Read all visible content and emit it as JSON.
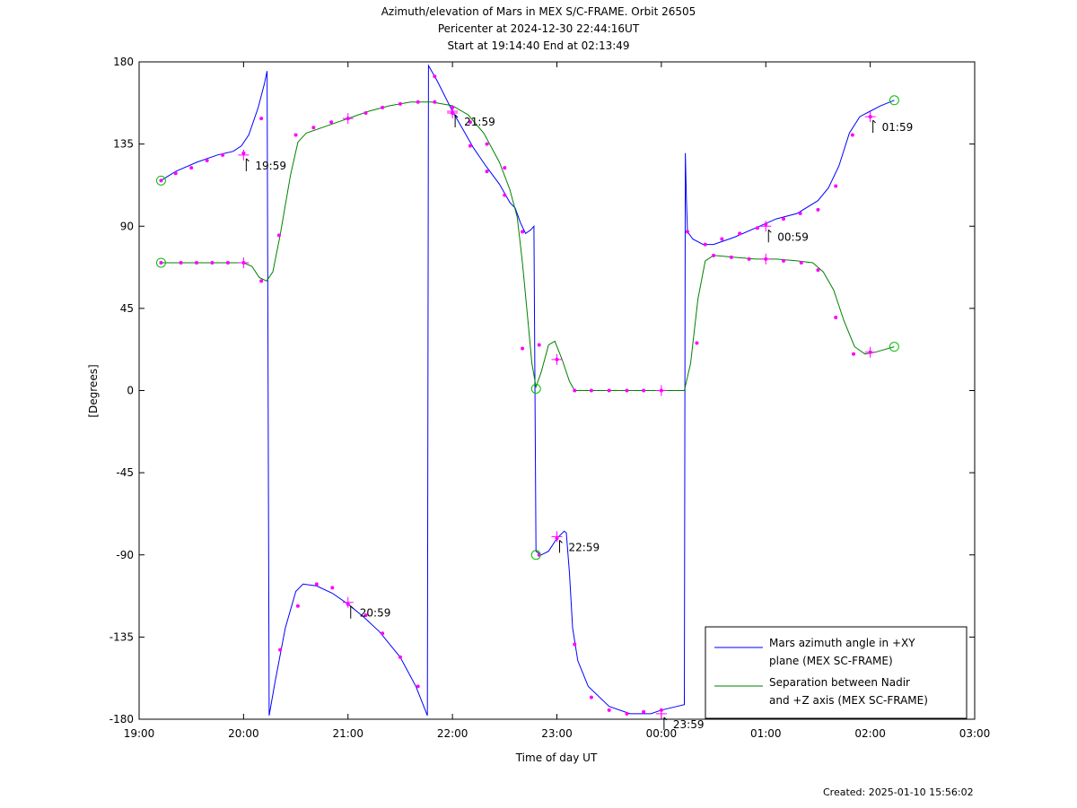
{
  "title": {
    "line1": "Azimuth/elevation of Mars in MEX S/C-FRAME.  Orbit 26505",
    "line2": "Pericenter at 2024-12-30 22:44:16UT",
    "line3": "Start at 19:14:40 End at 02:13:49"
  },
  "footer": {
    "created": "Created: 2025-01-10 15:56:02"
  },
  "colors": {
    "azimuth": "#0000ff",
    "separation": "#008000",
    "markers": "#ff00ff",
    "start_end": "#00c000"
  },
  "chart_data": {
    "type": "line",
    "xlabel": "Time of day UT",
    "ylabel": "[Degrees]",
    "x_unit": "hours since 19:00 UT on 2024-12-30",
    "xlim": [
      0,
      8
    ],
    "ylim": [
      -180,
      180
    ],
    "x_ticks": [
      {
        "v": 0,
        "label": "19:00"
      },
      {
        "v": 1,
        "label": "20:00"
      },
      {
        "v": 2,
        "label": "21:00"
      },
      {
        "v": 3,
        "label": "22:00"
      },
      {
        "v": 4,
        "label": "23:00"
      },
      {
        "v": 5,
        "label": "00:00"
      },
      {
        "v": 6,
        "label": "01:00"
      },
      {
        "v": 7,
        "label": "02:00"
      },
      {
        "v": 8,
        "label": "03:00"
      }
    ],
    "y_ticks": [
      {
        "v": 180,
        "label": "180"
      },
      {
        "v": 135,
        "label": "135"
      },
      {
        "v": 90,
        "label": "90"
      },
      {
        "v": 45,
        "label": "45"
      },
      {
        "v": 0,
        "label": "0"
      },
      {
        "v": -45,
        "label": "-45"
      },
      {
        "v": -90,
        "label": "-90"
      },
      {
        "v": -135,
        "label": "-135"
      },
      {
        "v": -180,
        "label": "-180"
      }
    ],
    "grid": false,
    "legend_position": "bottom-right",
    "legend": [
      {
        "series": "azimuth",
        "line1": "Mars azimuth angle in +XY",
        "line2": "plane (MEX SC-FRAME)"
      },
      {
        "series": "separation",
        "line1": "Separation between Nadir",
        "line2": "and +Z axis (MEX SC-FRAME)"
      }
    ],
    "series": [
      {
        "id": "azimuth",
        "name": "Mars azimuth angle in +XY plane (MEX SC-FRAME)",
        "segments": [
          [
            [
              0.21,
              115
            ],
            [
              0.35,
              120
            ],
            [
              0.55,
              125
            ],
            [
              0.75,
              129
            ],
            [
              0.9,
              131
            ],
            [
              0.98,
              134
            ],
            [
              1.05,
              140
            ],
            [
              1.14,
              155
            ],
            [
              1.2,
              168
            ],
            [
              1.225,
              175
            ]
          ],
          [
            [
              1.245,
              -178
            ],
            [
              1.3,
              -160
            ],
            [
              1.4,
              -130
            ],
            [
              1.5,
              -110
            ],
            [
              1.57,
              -106
            ],
            [
              1.7,
              -107
            ],
            [
              1.85,
              -111
            ],
            [
              2.0,
              -117
            ],
            [
              2.15,
              -124
            ],
            [
              2.3,
              -132
            ],
            [
              2.5,
              -146
            ],
            [
              2.65,
              -162
            ],
            [
              2.76,
              -178
            ]
          ],
          [
            [
              2.77,
              178
            ],
            [
              2.85,
              170
            ],
            [
              3.0,
              153
            ],
            [
              3.1,
              143
            ],
            [
              3.2,
              133
            ],
            [
              3.32,
              123
            ],
            [
              3.45,
              113
            ],
            [
              3.55,
              103
            ],
            [
              3.6,
              100
            ],
            [
              3.65,
              92
            ],
            [
              3.7,
              86
            ],
            [
              3.75,
              88
            ],
            [
              3.78,
              90
            ]
          ],
          [
            [
              3.8,
              -88
            ],
            [
              3.85,
              -90
            ],
            [
              3.92,
              -88
            ],
            [
              4.0,
              -81
            ],
            [
              4.07,
              -77
            ],
            [
              4.09,
              -78
            ],
            [
              4.12,
              -100
            ],
            [
              4.15,
              -130
            ],
            [
              4.2,
              -148
            ],
            [
              4.3,
              -162
            ],
            [
              4.5,
              -173
            ],
            [
              4.7,
              -177
            ],
            [
              4.9,
              -177
            ],
            [
              5.0,
              -175
            ],
            [
              5.15,
              -173
            ],
            [
              5.22,
              -172
            ]
          ],
          [
            [
              5.23,
              130
            ],
            [
              5.24,
              105
            ],
            [
              5.25,
              87
            ],
            [
              5.3,
              83
            ],
            [
              5.4,
              80
            ],
            [
              5.5,
              80
            ],
            [
              5.7,
              84
            ],
            [
              5.9,
              89
            ],
            [
              6.1,
              94
            ],
            [
              6.3,
              97
            ],
            [
              6.5,
              104
            ],
            [
              6.6,
              111
            ],
            [
              6.7,
              123
            ],
            [
              6.8,
              141
            ],
            [
              6.9,
              150
            ],
            [
              7.0,
              153
            ],
            [
              7.1,
              156
            ],
            [
              7.23,
              159
            ]
          ]
        ]
      },
      {
        "id": "separation",
        "name": "Separation between Nadir and +Z axis (MEX SC-FRAME)",
        "segments": [
          [
            [
              0.21,
              70
            ],
            [
              0.4,
              70
            ],
            [
              0.6,
              70
            ],
            [
              0.8,
              70
            ],
            [
              1.0,
              70
            ],
            [
              1.08,
              68
            ],
            [
              1.15,
              62
            ],
            [
              1.22,
              60
            ],
            [
              1.28,
              65
            ],
            [
              1.35,
              85
            ],
            [
              1.45,
              118
            ],
            [
              1.52,
              136
            ],
            [
              1.6,
              141
            ],
            [
              1.8,
              145
            ],
            [
              2.0,
              149
            ],
            [
              2.2,
              153
            ],
            [
              2.4,
              156
            ],
            [
              2.6,
              158
            ],
            [
              2.8,
              158
            ],
            [
              3.0,
              156
            ],
            [
              3.15,
              151
            ],
            [
              3.3,
              141
            ],
            [
              3.45,
              125
            ],
            [
              3.55,
              110
            ],
            [
              3.62,
              95
            ],
            [
              3.67,
              70
            ],
            [
              3.72,
              40
            ],
            [
              3.76,
              15
            ],
            [
              3.8,
              2
            ],
            [
              3.85,
              10
            ],
            [
              3.92,
              25
            ],
            [
              3.98,
              27
            ],
            [
              4.05,
              17
            ],
            [
              4.12,
              5
            ],
            [
              4.17,
              0
            ],
            [
              4.3,
              0
            ],
            [
              4.5,
              0
            ],
            [
              4.7,
              0
            ],
            [
              4.9,
              0
            ],
            [
              5.0,
              0
            ],
            [
              5.15,
              0
            ],
            [
              5.22,
              0
            ],
            [
              5.28,
              15
            ],
            [
              5.35,
              50
            ],
            [
              5.42,
              71
            ],
            [
              5.5,
              74
            ],
            [
              5.7,
              73
            ],
            [
              5.9,
              72
            ],
            [
              6.1,
              72
            ],
            [
              6.3,
              71
            ],
            [
              6.45,
              70
            ],
            [
              6.55,
              65
            ],
            [
              6.65,
              55
            ],
            [
              6.75,
              38
            ],
            [
              6.85,
              24
            ],
            [
              6.95,
              20
            ],
            [
              7.05,
              21
            ],
            [
              7.23,
              24
            ]
          ]
        ]
      }
    ],
    "markers_azimuth": [
      0.21,
      0.35,
      0.5,
      0.65,
      0.8,
      1.0,
      1.17,
      1.35,
      1.52,
      1.7,
      1.85,
      2.0,
      2.17,
      2.33,
      2.5,
      2.67,
      2.83,
      3.0,
      3.17,
      3.33,
      3.5,
      3.67,
      3.83,
      4.0,
      4.17,
      4.33,
      4.5,
      4.67,
      4.83,
      5.0,
      5.25,
      5.42,
      5.58,
      5.75,
      5.92,
      6.0,
      6.17,
      6.33,
      6.5,
      6.67,
      6.83,
      7.0
    ],
    "markers_azimuth_y": [
      115,
      119,
      122,
      126,
      129,
      130,
      149,
      -142,
      -118,
      -106,
      -108,
      -117,
      -123,
      -133,
      -146,
      -162,
      172,
      152,
      134,
      120,
      107,
      87,
      -90,
      -81,
      -139,
      -168,
      -175,
      -177,
      -176,
      -175,
      87,
      80,
      83,
      86,
      89,
      91,
      94,
      97,
      99,
      112,
      140,
      150
    ],
    "markers_separation_x": [
      0.21,
      0.4,
      0.55,
      0.7,
      0.85,
      1.0,
      1.17,
      1.34,
      1.5,
      1.67,
      1.84,
      2.0,
      2.17,
      2.33,
      2.5,
      2.67,
      2.83,
      3.0,
      3.17,
      3.33,
      3.5,
      3.67,
      3.83,
      4.0,
      4.17,
      4.33,
      4.5,
      4.67,
      4.83,
      5.0,
      5.34,
      5.5,
      5.67,
      5.84,
      6.0,
      6.17,
      6.34,
      6.5,
      6.67,
      6.84,
      7.0
    ],
    "markers_separation_y": [
      70,
      70,
      70,
      70,
      70,
      70,
      60,
      85,
      140,
      144,
      147,
      149,
      152,
      155,
      157,
      158,
      158,
      155,
      147,
      135,
      122,
      23,
      25,
      17,
      0,
      0,
      0,
      0,
      0,
      0,
      26,
      74,
      73,
      72,
      72,
      71,
      70,
      66,
      40,
      20,
      21
    ],
    "time_labels": [
      {
        "x": 1.0,
        "y": 129,
        "label": "19:59"
      },
      {
        "x": 2.0,
        "y": -116,
        "label": "20:59"
      },
      {
        "x": 3.0,
        "y": 153,
        "label": "21:59"
      },
      {
        "x": 4.0,
        "y": -80,
        "label": "22:59"
      },
      {
        "x": 5.0,
        "y": -177,
        "label": "23:59"
      },
      {
        "x": 6.0,
        "y": 90,
        "label": "00:59"
      },
      {
        "x": 7.0,
        "y": 150,
        "label": "01:59"
      }
    ],
    "plus_markers": [
      {
        "x": 1.0,
        "y": 129
      },
      {
        "x": 1.0,
        "y": 70
      },
      {
        "x": 2.0,
        "y": -116
      },
      {
        "x": 2.0,
        "y": 149
      },
      {
        "x": 3.0,
        "y": 153
      },
      {
        "x": 3.0,
        "y": 152
      },
      {
        "x": 4.0,
        "y": -80
      },
      {
        "x": 4.0,
        "y": 17
      },
      {
        "x": 5.0,
        "y": -177
      },
      {
        "x": 5.0,
        "y": 0
      },
      {
        "x": 6.0,
        "y": 90
      },
      {
        "x": 6.0,
        "y": 72
      },
      {
        "x": 7.0,
        "y": 150
      },
      {
        "x": 7.0,
        "y": 21
      }
    ],
    "start_end_circles": [
      {
        "x": 0.21,
        "y": 115
      },
      {
        "x": 0.21,
        "y": 70
      },
      {
        "x": 7.23,
        "y": 159
      },
      {
        "x": 7.23,
        "y": 24
      },
      {
        "x": 3.8,
        "y": -90
      },
      {
        "x": 3.8,
        "y": 1
      }
    ]
  }
}
